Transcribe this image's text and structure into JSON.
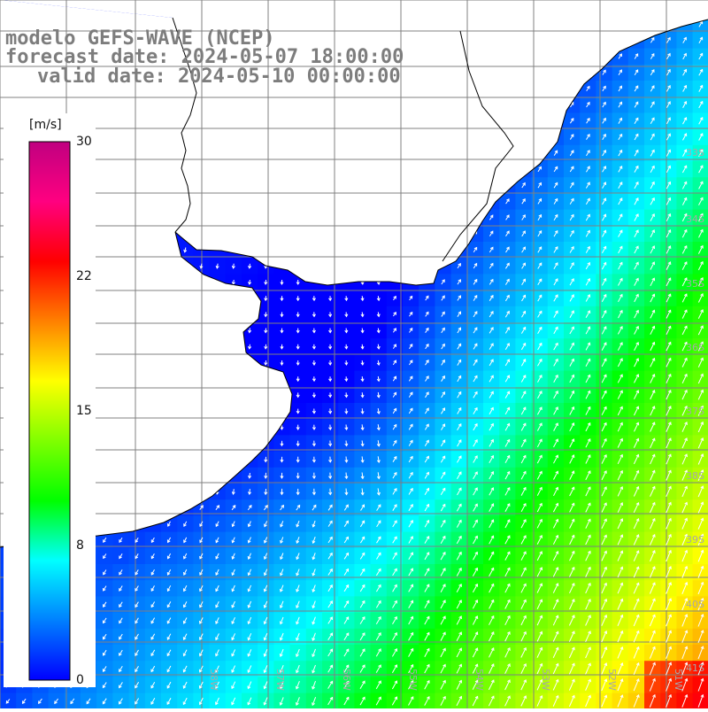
{
  "title": {
    "line1": "modelo GEFS-WAVE (NCEP)",
    "line2": "forecast date: 2024-05-07 18:00:00",
    "line3": "valid date: 2024-05-10 00:00:00"
  },
  "colorbar": {
    "unit": "[m/s]",
    "ticks": [
      30,
      22,
      15,
      8,
      0
    ],
    "colors": [
      "#0000ff",
      "#0080ff",
      "#00ffff",
      "#00ff00",
      "#80ff00",
      "#ffff00",
      "#ff8000",
      "#ff0000",
      "#ff0080",
      "#c00080"
    ]
  },
  "grid": {
    "lat_labels": [
      "33S",
      "34S",
      "35S",
      "36S",
      "37S",
      "38S",
      "39S",
      "40S",
      "41S"
    ],
    "lon_labels": [
      "58W",
      "57W",
      "56W",
      "55W",
      "54W",
      "53W",
      "52W",
      "51W"
    ]
  },
  "colors": {
    "land": "#ffffff",
    "coast": "#000000",
    "grid": "#808080",
    "arrow": "#ffffff",
    "title": "#7d7d7d"
  }
}
